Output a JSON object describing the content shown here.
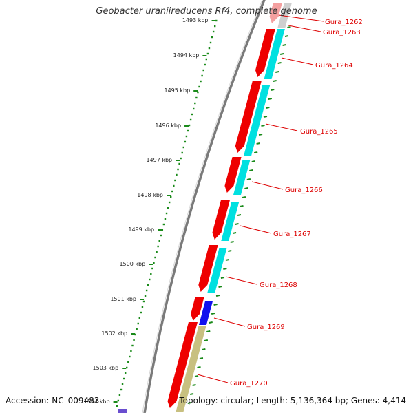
{
  "map": {
    "title": "Geobacter uraniireducens Rf4, complete genome",
    "accession_text": "Accession: NC_009483",
    "summary_text": "Topology: circular; Length: 5,136,364 bp; Genes: 4,414",
    "colors": {
      "backbone": "#7a7a7a",
      "scale_ticks": "#1a8a1a",
      "gene_forward": "#ee0000",
      "cds": "#00e0e0",
      "cds_alt": "#1010ee",
      "rna": "#c8c080",
      "label": "#dd0000"
    },
    "scale_labels": [
      "1493 kbp",
      "1494 kbp",
      "1495 kbp",
      "1496 kbp",
      "1497 kbp",
      "1498 kbp",
      "1499 kbp",
      "1500 kbp",
      "1501 kbp",
      "1502 kbp",
      "1503 kbp",
      "1504 kbp"
    ],
    "gene_labels": [
      "Gura_1262",
      "Gura_1263",
      "Gura_1264",
      "Gura_1265",
      "Gura_1266",
      "Gura_1267",
      "Gura_1268",
      "Gura_1269",
      "Gura_1270"
    ]
  }
}
